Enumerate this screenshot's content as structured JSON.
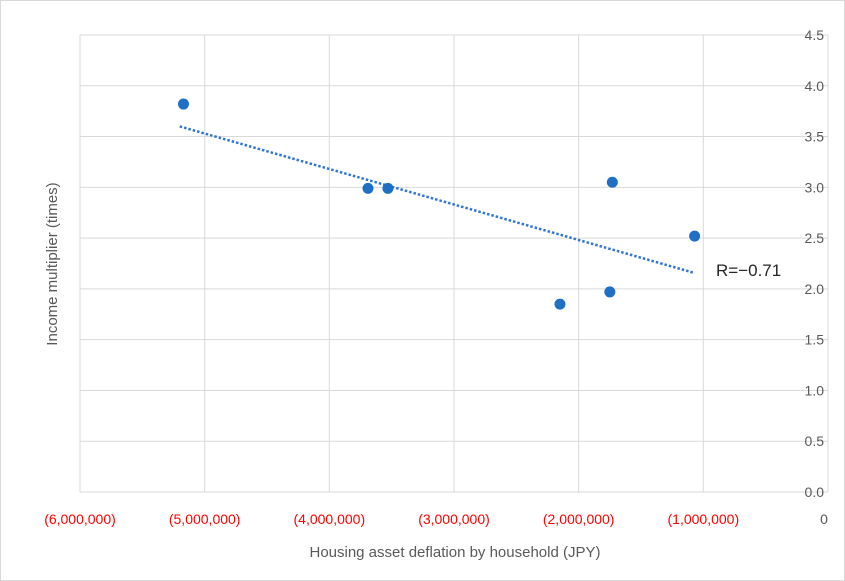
{
  "chart_data": {
    "type": "scatter",
    "title": "",
    "xlabel": "Housing asset deflation by household (JPY)",
    "ylabel": "Income multiplier (times)",
    "xlim": [
      -6000000,
      0
    ],
    "ylim": [
      0,
      4.5
    ],
    "x_ticks": [
      {
        "value": -6000000,
        "label": "(6,000,000)"
      },
      {
        "value": -5000000,
        "label": "(5,000,000)"
      },
      {
        "value": -4000000,
        "label": "(4,000,000)"
      },
      {
        "value": -3000000,
        "label": "(3,000,000)"
      },
      {
        "value": -2000000,
        "label": "(2,000,000)"
      },
      {
        "value": -1000000,
        "label": "(1,000,000)"
      },
      {
        "value": 0,
        "label": "0"
      }
    ],
    "y_ticks": [
      "0.0",
      "0.5",
      "1.0",
      "1.5",
      "2.0",
      "2.5",
      "3.0",
      "3.5",
      "4.0",
      "4.5"
    ],
    "grid": true,
    "points": [
      {
        "x": -5170000,
        "y": 3.82
      },
      {
        "x": -3690000,
        "y": 2.99
      },
      {
        "x": -3530000,
        "y": 2.99
      },
      {
        "x": -2150000,
        "y": 1.85
      },
      {
        "x": -1750000,
        "y": 1.97
      },
      {
        "x": -1730000,
        "y": 3.05
      },
      {
        "x": -1070000,
        "y": 2.52
      }
    ],
    "trendline": {
      "x": [
        -5200000,
        -1080000
      ],
      "y": [
        3.6,
        2.16
      ],
      "style": "dotted"
    },
    "annotation": "R=−0.71",
    "colors": {
      "marker": "#1f6fc5",
      "trendline": "#2e75d6",
      "negative_tick_label": "#ff0000",
      "zero_tick_label": "#595959",
      "grid": "#d9d9d9"
    }
  }
}
